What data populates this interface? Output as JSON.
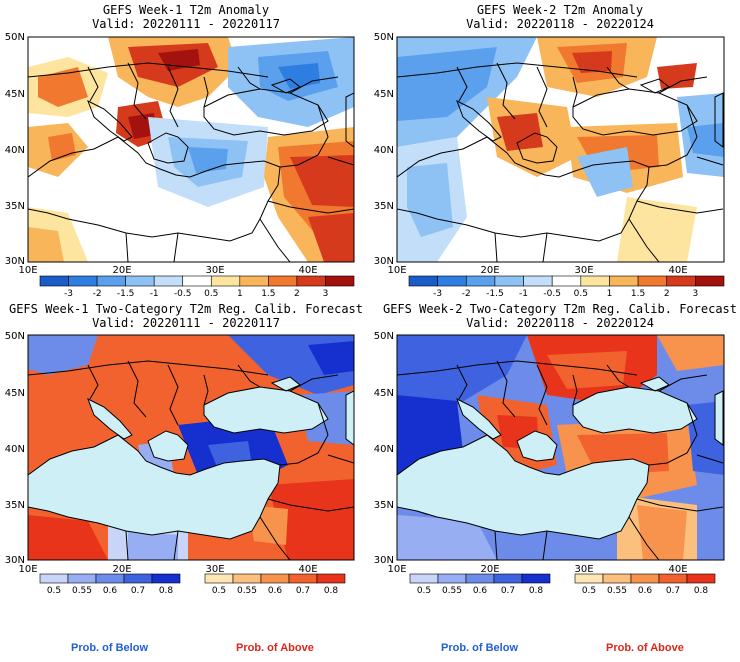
{
  "panels": [
    {
      "title": "GEFS Week-1 T2m Anomaly",
      "valid": "Valid: 20220111 - 20220117"
    },
    {
      "title": "GEFS Week-2 T2m Anomaly",
      "valid": "Valid: 20220118 - 20220124"
    },
    {
      "title": "GEFS Week-1 Two-Category T2m Reg. Calib. Forecast",
      "valid": "Valid: 20220111 - 20220117"
    },
    {
      "title": "GEFS Week-2 Two-Category T2m Reg. Calib. Forecast",
      "valid": "Valid: 20220118 - 20220124"
    }
  ],
  "lat_labels": [
    "50N",
    "45N",
    "40N",
    "35N",
    "30N"
  ],
  "lon_labels": [
    "10E",
    "20E",
    "30E",
    "40E"
  ],
  "anomaly_colorbar": {
    "labels": [
      "-3",
      "-2",
      "-1.5",
      "-1",
      "-0.5",
      "0.5",
      "1",
      "1.5",
      "2",
      "3"
    ],
    "colors": [
      "#1a5cc8",
      "#2e7de0",
      "#5aa0ec",
      "#8fc2f4",
      "#c3def9",
      "#ffffff",
      "#fde5a0",
      "#f9b55a",
      "#f0782f",
      "#d63a1c",
      "#a3120e"
    ]
  },
  "prob_colorbar_below": {
    "labels": [
      "0.5",
      "0.55",
      "0.6",
      "0.7",
      "0.8"
    ],
    "colors": [
      "#c8d4f8",
      "#98aef2",
      "#6d8cea",
      "#3f63e0",
      "#1630d0"
    ]
  },
  "prob_colorbar_above": {
    "labels": [
      "0.5",
      "0.55",
      "0.6",
      "0.7",
      "0.8"
    ],
    "colors": [
      "#fde6b6",
      "#fbbf7e",
      "#f8934e",
      "#f2622e",
      "#e8341a"
    ]
  },
  "legend": {
    "below": "Prob. of Below",
    "above": "Prob. of Above"
  },
  "colors": {
    "sea": "#cdeff5",
    "land_line": "#000000"
  }
}
